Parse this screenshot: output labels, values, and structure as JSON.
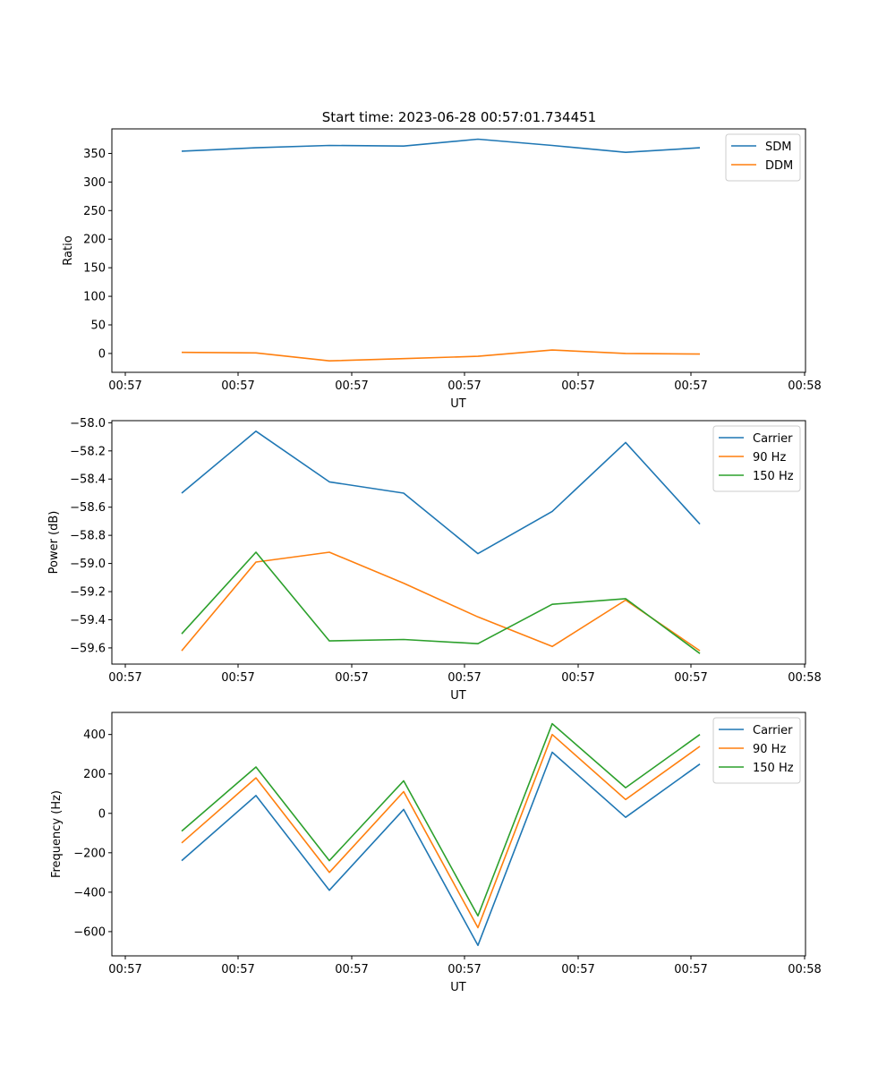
{
  "figure": {
    "title": "Start time: 2023-06-28 00:57:01.734451"
  },
  "colors": {
    "blue": "#1f77b4",
    "orange": "#ff7f0e",
    "green": "#2ca02c"
  },
  "chart_data": [
    {
      "type": "line",
      "xlabel": "UT",
      "ylabel": "Ratio",
      "x_ticks": [
        "00:57",
        "00:57",
        "00:57",
        "00:57",
        "00:57",
        "00:57",
        "00:57",
        "00:58"
      ],
      "y_ticks": [
        0,
        50,
        100,
        150,
        200,
        250,
        300,
        350
      ],
      "ylim": [
        -33,
        393
      ],
      "legend_position": "upper-right",
      "series": [
        {
          "name": "SDM",
          "color": "#1f77b4",
          "values": [
            354,
            360,
            364,
            363,
            375,
            364,
            352,
            360
          ]
        },
        {
          "name": "DDM",
          "color": "#ff7f0e",
          "values": [
            2,
            1,
            -13,
            -9,
            -5,
            6,
            0,
            -1
          ]
        }
      ]
    },
    {
      "type": "line",
      "xlabel": "UT",
      "ylabel": "Power (dB)",
      "x_ticks": [
        "00:57",
        "00:57",
        "00:57",
        "00:57",
        "00:57",
        "00:57",
        "00:57",
        "00:58"
      ],
      "y_ticks": [
        "−59.6",
        "−59.4",
        "−59.2",
        "−59.0",
        "−58.8",
        "−58.6",
        "−58.4",
        "−58.2",
        "−58.0"
      ],
      "ylim": [
        -59.715,
        -57.985
      ],
      "legend_position": "upper-right",
      "series": [
        {
          "name": "Carrier",
          "color": "#1f77b4",
          "values": [
            -58.5,
            -58.06,
            -58.42,
            -58.5,
            -58.93,
            -58.63,
            -58.14,
            -58.72
          ]
        },
        {
          "name": "90 Hz",
          "color": "#ff7f0e",
          "values": [
            -59.62,
            -58.99,
            -58.92,
            -59.14,
            -59.38,
            -59.59,
            -59.26,
            -59.62
          ]
        },
        {
          "name": "150 Hz",
          "color": "#2ca02c",
          "values": [
            -59.5,
            -58.92,
            -59.55,
            -59.54,
            -59.57,
            -59.29,
            -59.25,
            -59.64
          ]
        }
      ]
    },
    {
      "type": "line",
      "xlabel": "UT",
      "ylabel": "Frequency (Hz)",
      "x_ticks": [
        "00:57",
        "00:57",
        "00:57",
        "00:57",
        "00:57",
        "00:57",
        "00:57",
        "00:58"
      ],
      "y_ticks": [
        "−600",
        "−400",
        "−200",
        "0",
        "200",
        "400"
      ],
      "ylim": [
        -723,
        512
      ],
      "legend_position": "upper-right",
      "series": [
        {
          "name": "Carrier",
          "color": "#1f77b4",
          "values": [
            -240,
            90,
            -390,
            20,
            -670,
            310,
            -20,
            250
          ]
        },
        {
          "name": "90 Hz",
          "color": "#ff7f0e",
          "values": [
            -150,
            180,
            -300,
            110,
            -580,
            400,
            70,
            340
          ]
        },
        {
          "name": "150 Hz",
          "color": "#2ca02c",
          "values": [
            -90,
            235,
            -240,
            165,
            -520,
            455,
            130,
            400
          ]
        }
      ]
    }
  ]
}
